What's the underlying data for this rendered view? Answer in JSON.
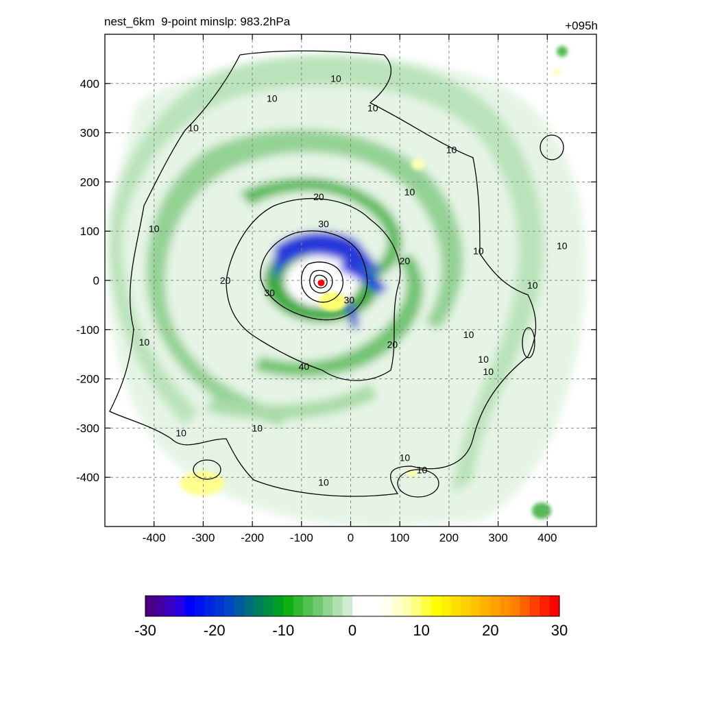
{
  "figure": {
    "title": "nest_6km  9-point minslp: 983.2hPa",
    "valid_time_label": "+095h"
  },
  "chart_data": [
    {
      "type": "heatmap",
      "title": "nest_6km  9-point minslp: 983.2hPa",
      "annotation": "+095h",
      "xlabel": "",
      "ylabel": "",
      "xlim": [
        -500,
        500
      ],
      "ylim": [
        -500,
        500
      ],
      "xticks": [
        -400,
        -300,
        -200,
        -100,
        0,
        100,
        200,
        300,
        400
      ],
      "yticks": [
        -400,
        -300,
        -200,
        -100,
        0,
        100,
        200,
        300,
        400
      ],
      "grid": true,
      "fill_description": "spiral rainbands of negative values (green, blue near center) wrapping around storm center near (-60, 0); small positive (yellow/red) spots near center and at (-330, -410)",
      "center_max": {
        "x": -60,
        "y": -5,
        "color": "#ff0000"
      },
      "contours": {
        "levels": [
          10,
          20,
          30,
          40
        ],
        "labels": [
          {
            "text": "10",
            "x": -320,
            "y": 310
          },
          {
            "text": "10",
            "x": -160,
            "y": 370
          },
          {
            "text": "10",
            "x": -30,
            "y": 410
          },
          {
            "text": "10",
            "x": 45,
            "y": 350
          },
          {
            "text": "10",
            "x": 205,
            "y": 265
          },
          {
            "text": "10",
            "x": 120,
            "y": 180
          },
          {
            "text": "10",
            "x": -400,
            "y": 105
          },
          {
            "text": "10",
            "x": 260,
            "y": 60
          },
          {
            "text": "10",
            "x": 430,
            "y": 70
          },
          {
            "text": "10",
            "x": 370,
            "y": -10
          },
          {
            "text": "10",
            "x": -420,
            "y": -125
          },
          {
            "text": "10",
            "x": 240,
            "y": -110
          },
          {
            "text": "10",
            "x": 270,
            "y": -160
          },
          {
            "text": "10",
            "x": 280,
            "y": -185
          },
          {
            "text": "10",
            "x": -345,
            "y": -310
          },
          {
            "text": "10",
            "x": -190,
            "y": -300
          },
          {
            "text": "10",
            "x": -55,
            "y": -410
          },
          {
            "text": "10",
            "x": 110,
            "y": -360
          },
          {
            "text": "10",
            "x": 145,
            "y": -385
          },
          {
            "text": "20",
            "x": -65,
            "y": 170
          },
          {
            "text": "20",
            "x": -255,
            "y": 0
          },
          {
            "text": "20",
            "x": 110,
            "y": 40
          },
          {
            "text": "20",
            "x": 85,
            "y": -130
          },
          {
            "text": "30",
            "x": -55,
            "y": 115
          },
          {
            "text": "30",
            "x": -165,
            "y": -25
          },
          {
            "text": "30",
            "x": -3,
            "y": -40
          },
          {
            "text": "40",
            "x": -95,
            "y": -175
          }
        ]
      },
      "colorbar": {
        "ticks": [
          "-30",
          "-20",
          "-10",
          "0",
          "10",
          "20",
          "30"
        ],
        "min": -30,
        "max": 30,
        "colors": [
          "#4b0082",
          "#4400a0",
          "#3a00c0",
          "#2600e0",
          "#0000ff",
          "#0012f2",
          "#0024e4",
          "#0036d6",
          "#0048c8",
          "#005aa0",
          "#006c80",
          "#007e60",
          "#009040",
          "#00a020",
          "#10b010",
          "#30b830",
          "#50c050",
          "#70c870",
          "#90d490",
          "#b0e0b0",
          "#d0ecd0",
          "#ffffff",
          "#ffffff",
          "#ffffff",
          "#fffff0",
          "#ffffd0",
          "#ffffb0",
          "#ffff80",
          "#ffff40",
          "#ffff00",
          "#fff000",
          "#ffe000",
          "#ffd000",
          "#ffc000",
          "#ffb000",
          "#ffa000",
          "#ff9000",
          "#ff8000",
          "#ff6000",
          "#ff4000",
          "#ff2000",
          "#ff0000"
        ]
      }
    }
  ]
}
